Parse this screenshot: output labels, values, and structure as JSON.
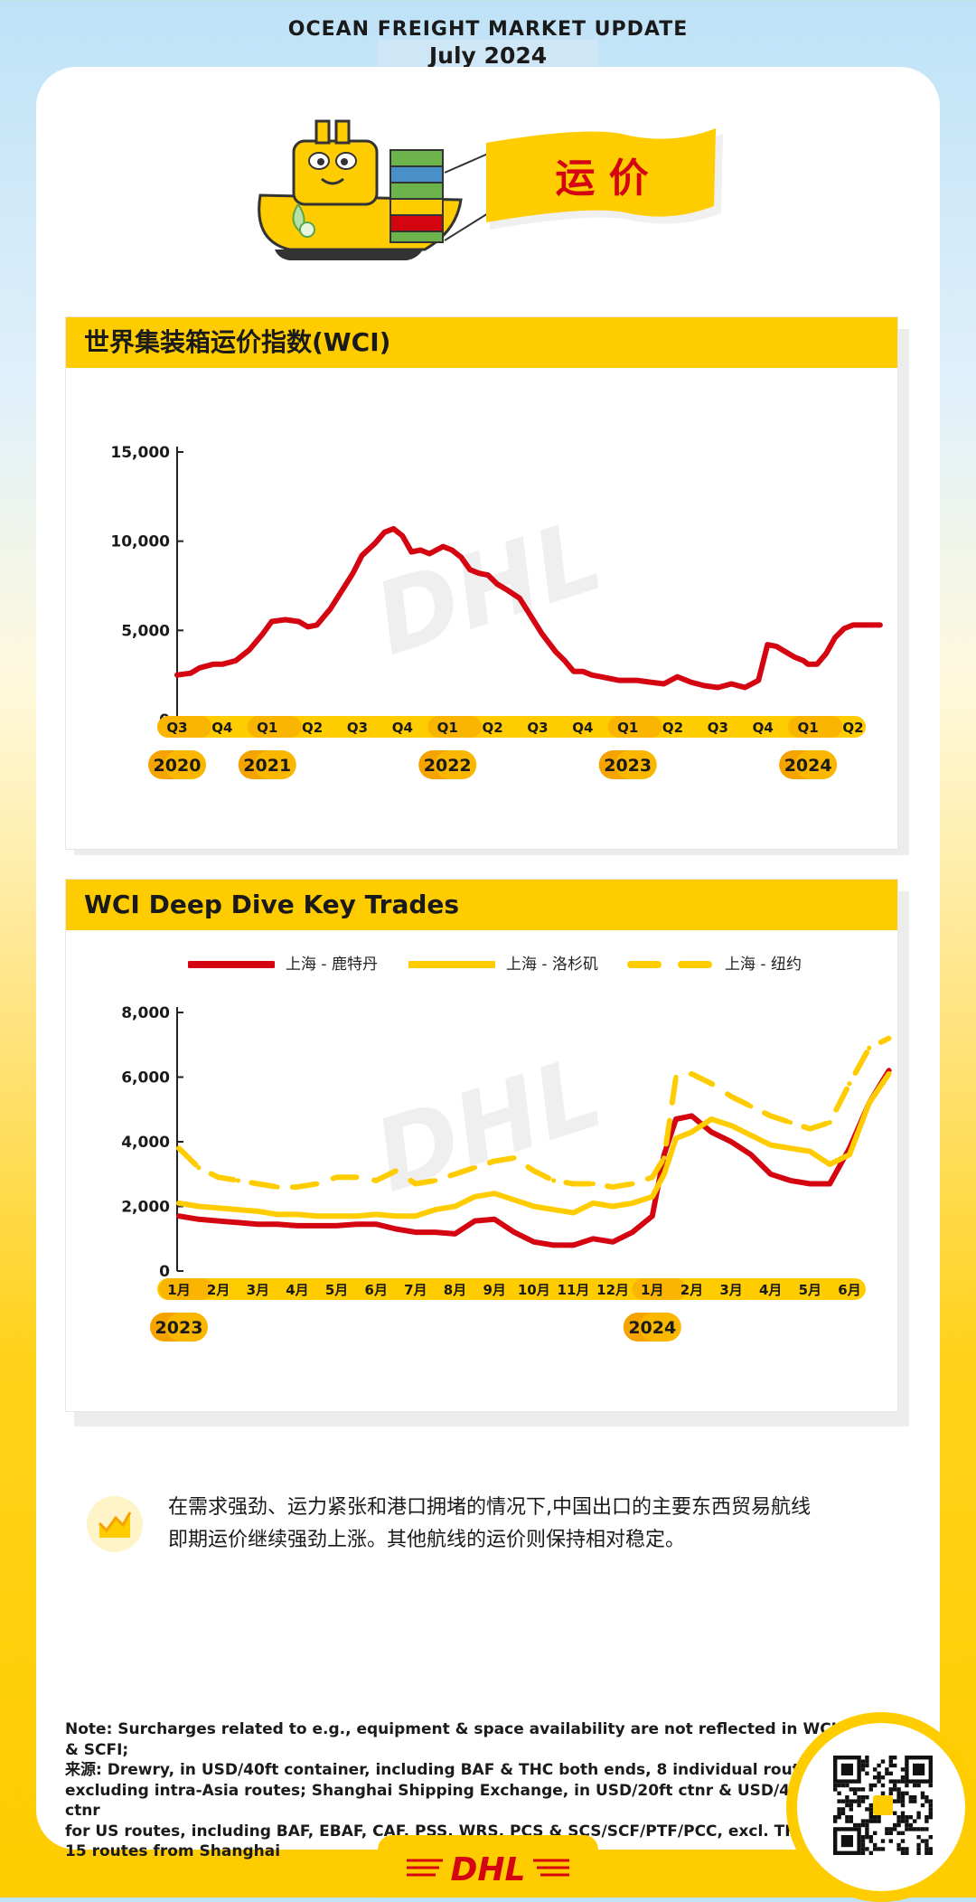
{
  "header": {
    "title": "OCEAN FREIGHT MARKET UPDATE",
    "subtitle": "July 2024"
  },
  "hero": {
    "banner_text": "运 价"
  },
  "chart1": {
    "panel_title": "世界集装箱运价指数(WCI)",
    "chart_data": {
      "type": "line",
      "title": "世界集装箱运价指数(WCI)",
      "yticks": [
        "0",
        "5,000",
        "10,000",
        "15,000"
      ],
      "ylim": [
        0,
        15000
      ],
      "xticks": [
        "Q3",
        "Q4",
        "Q1",
        "Q2",
        "Q3",
        "Q4",
        "Q1",
        "Q2",
        "Q3",
        "Q4",
        "Q1",
        "Q2",
        "Q3",
        "Q4",
        "Q1",
        "Q2"
      ],
      "years": [
        {
          "label": "2020",
          "tick_index": 0
        },
        {
          "label": "2021",
          "tick_index": 2
        },
        {
          "label": "2022",
          "tick_index": 6
        },
        {
          "label": "2023",
          "tick_index": 10
        },
        {
          "label": "2024",
          "tick_index": 14
        }
      ],
      "grid": false,
      "color": "#d40511",
      "x": [
        0,
        0.3,
        0.5,
        0.8,
        1.0,
        1.3,
        1.6,
        1.9,
        2.1,
        2.4,
        2.7,
        2.9,
        3.1,
        3.4,
        3.6,
        3.9,
        4.1,
        4.4,
        4.6,
        4.8,
        5.0,
        5.2,
        5.4,
        5.6,
        5.9,
        6.1,
        6.3,
        6.5,
        6.7,
        6.9,
        7.1,
        7.3,
        7.6,
        7.8,
        8.1,
        8.4,
        8.6,
        8.8,
        9.0,
        9.2,
        9.4,
        9.6,
        9.8,
        10.0,
        10.2,
        10.5,
        10.8,
        11.1,
        11.4,
        11.7,
        12.0,
        12.3,
        12.6,
        12.9,
        13.1,
        13.3,
        13.5,
        13.7,
        13.9,
        14.0,
        14.2,
        14.4,
        14.6,
        14.8,
        15.0,
        15.2,
        15.4,
        15.6
      ],
      "values": [
        2500,
        2600,
        2900,
        3100,
        3100,
        3300,
        3900,
        4800,
        5500,
        5600,
        5500,
        5200,
        5300,
        6200,
        7000,
        8200,
        9200,
        9900,
        10500,
        10700,
        10300,
        9400,
        9500,
        9300,
        9700,
        9500,
        9100,
        8400,
        8200,
        8100,
        7600,
        7300,
        6800,
        6000,
        4800,
        3800,
        3300,
        2700,
        2700,
        2500,
        2400,
        2300,
        2200,
        2200,
        2200,
        2100,
        2000,
        2400,
        2100,
        1900,
        1800,
        2000,
        1800,
        2200,
        4200,
        4100,
        3800,
        3500,
        3300,
        3100,
        3100,
        3700,
        4600,
        5100,
        5300,
        5300,
        5300,
        5300
      ]
    }
  },
  "chart2": {
    "panel_title": "WCI Deep Dive Key Trades",
    "chart_data": {
      "type": "line",
      "title": "WCI Deep Dive Key Trades",
      "yticks": [
        "0",
        "2,000",
        "4,000",
        "6,000",
        "8,000"
      ],
      "ylim": [
        0,
        8000
      ],
      "xticks": [
        "1月",
        "2月",
        "3月",
        "4月",
        "5月",
        "6月",
        "7月",
        "8月",
        "9月",
        "10月",
        "11月",
        "12月",
        "1月",
        "2月",
        "3月",
        "4月",
        "5月",
        "6月"
      ],
      "years": [
        {
          "label": "2023",
          "tick_index": 0
        },
        {
          "label": "2024",
          "tick_index": 12
        }
      ],
      "legend_position": "top",
      "grid": false,
      "series": [
        {
          "name": "上海 - 鹿特丹",
          "color": "#d40511",
          "dash": "solid",
          "x": [
            0,
            0.5,
            1,
            1.5,
            2,
            2.5,
            3,
            3.5,
            4,
            4.5,
            5,
            5.5,
            6,
            6.5,
            7,
            7.5,
            8,
            8.5,
            9,
            9.5,
            10,
            10.5,
            11,
            11.5,
            12,
            12.3,
            12.6,
            13,
            13.5,
            14,
            14.5,
            15,
            15.5,
            16,
            16.5,
            17,
            17.5,
            18
          ],
          "values": [
            1700,
            1600,
            1550,
            1500,
            1450,
            1450,
            1400,
            1400,
            1400,
            1450,
            1450,
            1300,
            1200,
            1200,
            1150,
            1550,
            1600,
            1200,
            900,
            800,
            800,
            1000,
            900,
            1200,
            1700,
            3600,
            4700,
            4800,
            4300,
            4000,
            3600,
            3000,
            2800,
            2700,
            2700,
            3800,
            5200,
            6200
          ]
        },
        {
          "name": "上海 - 洛杉矶",
          "color": "#ffcc00",
          "dash": "solid",
          "x": [
            0,
            0.5,
            1,
            1.5,
            2,
            2.5,
            3,
            3.5,
            4,
            4.5,
            5,
            5.5,
            6,
            6.5,
            7,
            7.5,
            8,
            8.5,
            9,
            9.5,
            10,
            10.5,
            11,
            11.5,
            12,
            12.3,
            12.6,
            13,
            13.5,
            14,
            14.5,
            15,
            15.5,
            16,
            16.5,
            17,
            17.5,
            18
          ],
          "values": [
            2100,
            2000,
            1950,
            1900,
            1850,
            1750,
            1750,
            1700,
            1700,
            1700,
            1750,
            1700,
            1700,
            1900,
            2000,
            2300,
            2400,
            2200,
            2000,
            1900,
            1800,
            2100,
            2000,
            2100,
            2300,
            3000,
            4100,
            4300,
            4700,
            4500,
            4200,
            3900,
            3800,
            3700,
            3300,
            3600,
            5200,
            6100
          ]
        },
        {
          "name": "上海 - 纽约",
          "color": "#ffcc00",
          "dash": "dashed",
          "x": [
            0,
            0.5,
            1,
            1.5,
            2,
            2.5,
            3,
            3.5,
            4,
            4.5,
            5,
            5.5,
            6,
            6.5,
            7,
            7.5,
            8,
            8.5,
            9,
            9.5,
            10,
            10.5,
            11,
            11.5,
            12,
            12.3,
            12.6,
            13,
            13.5,
            14,
            14.5,
            15,
            15.5,
            16,
            16.5,
            17,
            17.5,
            18
          ],
          "values": [
            3800,
            3200,
            2900,
            2800,
            2700,
            2600,
            2600,
            2700,
            2900,
            2900,
            2800,
            3100,
            2700,
            2800,
            3000,
            3200,
            3400,
            3500,
            3100,
            2800,
            2700,
            2700,
            2600,
            2700,
            2900,
            3500,
            6000,
            6100,
            5800,
            5400,
            5100,
            4800,
            4600,
            4400,
            4600,
            5800,
            6900,
            7200
          ]
        }
      ]
    }
  },
  "insight": {
    "line1": "在需求强劲、运力紧张和港口拥堵的情况下,中国出口的主要东西贸易航线",
    "line2": "即期运价继续强劲上涨。其他航线的运价则保持相对稳定。"
  },
  "note": {
    "line1": "Note: Surcharges related to e.g., equipment & space availability are not reflected in WCI & SCFI;",
    "line2": "来源: Drewry, in USD/40ft container, including BAF & THC both ends, 8 individual routes,",
    "line3": "excluding intra-Asia routes; Shanghai Shipping Exchange, in USD/20ft ctnr & USD/40ft ctnr",
    "line4": "for US routes, including BAF, EBAF, CAF, PSS, WRS, PCS & SCS/SCF/PTF/PCC, excl. THC,",
    "line5": "15 routes from Shanghai"
  },
  "footer": {
    "logo_text": "DHL"
  }
}
